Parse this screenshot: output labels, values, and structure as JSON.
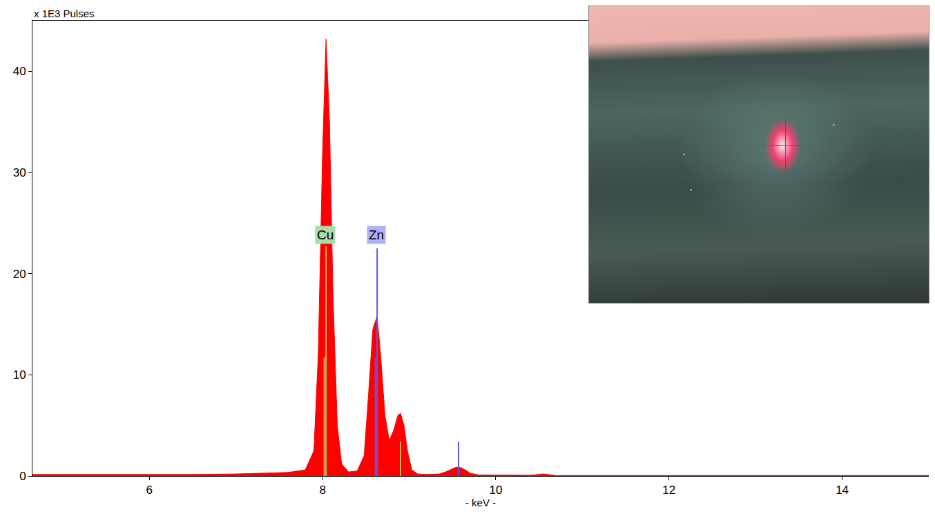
{
  "chart_data": {
    "type": "area",
    "y_label": "x 1E3 Pulses",
    "x_label": "- keV -",
    "xlim": [
      4.65,
      15.0
    ],
    "xticks": [
      6,
      8,
      10,
      12,
      14
    ],
    "ylim": [
      0,
      45
    ],
    "yticks": [
      0,
      10,
      20,
      30,
      40
    ],
    "grid": false,
    "color": "#ff0000",
    "x": [
      4.65,
      5.0,
      5.5,
      6.0,
      6.5,
      7.0,
      7.3,
      7.6,
      7.8,
      7.9,
      7.95,
      8.0,
      8.04,
      8.08,
      8.12,
      8.17,
      8.22,
      8.3,
      8.4,
      8.48,
      8.53,
      8.58,
      8.63,
      8.67,
      8.72,
      8.77,
      8.82,
      8.87,
      8.9,
      8.94,
      8.98,
      9.03,
      9.1,
      9.2,
      9.35,
      9.45,
      9.52,
      9.57,
      9.63,
      9.7,
      9.8,
      10.0,
      10.4,
      10.5,
      10.55,
      10.6,
      10.7,
      11,
      12,
      13,
      14,
      15
    ],
    "values": [
      0.15,
      0.15,
      0.1,
      0.1,
      0.15,
      0.2,
      0.25,
      0.35,
      0.6,
      2.5,
      12,
      32,
      43.2,
      35,
      18,
      5,
      1.2,
      0.4,
      0.5,
      2,
      8,
      14.5,
      15.8,
      12,
      6,
      3.5,
      4.5,
      6.0,
      6.2,
      5,
      2.5,
      0.6,
      0.2,
      0.15,
      0.2,
      0.5,
      0.8,
      0.9,
      0.7,
      0.3,
      0.1,
      0.08,
      0.08,
      0.15,
      0.2,
      0.15,
      0.05,
      0.05,
      0.05,
      0.05,
      0.05,
      0.05
    ],
    "series": [
      {
        "name": "Cu",
        "type": "stem",
        "color": "#c9b458",
        "label_color": "#a8dca8",
        "x": [
          8.02,
          8.04,
          8.9
        ],
        "values": [
          11.7,
          22.7,
          3.4
        ],
        "label_x": 8.03,
        "label_y": 23.8
      },
      {
        "name": "Zn",
        "type": "stem",
        "color": "#5a5af0",
        "label_color": "#b0b0f4",
        "x": [
          8.61,
          8.63,
          9.57
        ],
        "values": [
          11.7,
          22.5,
          3.4
        ],
        "label_x": 8.62,
        "label_y": 23.8
      }
    ]
  }
}
